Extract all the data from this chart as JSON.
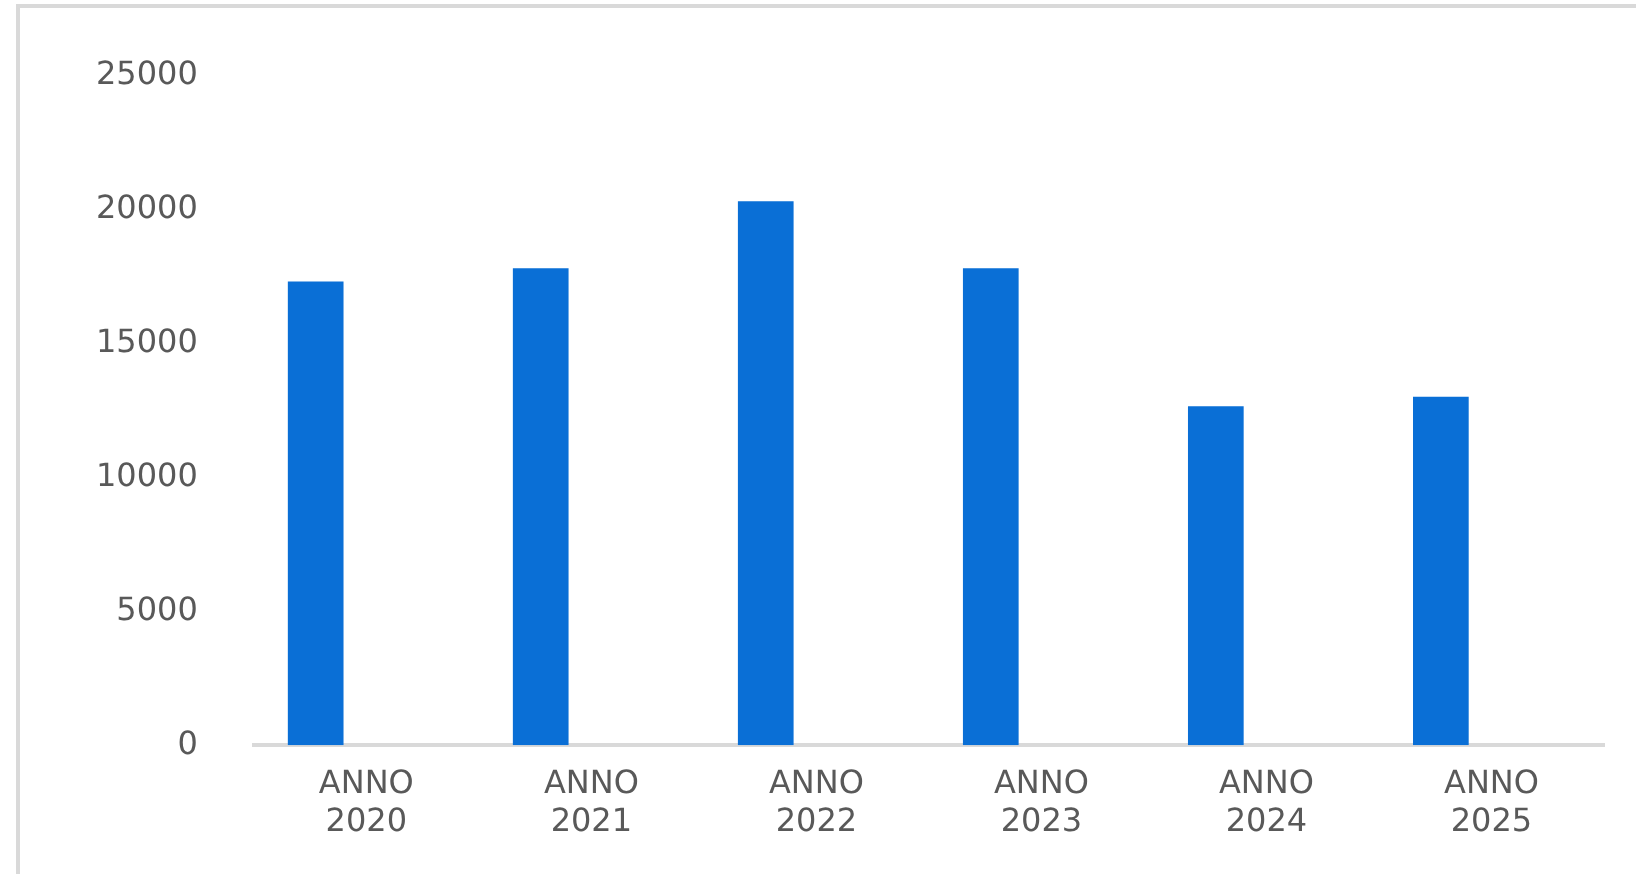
{
  "chart_data": {
    "type": "bar",
    "categories": [
      "ANNO 2020",
      "ANNO 2021",
      "ANNO 2022",
      "ANNO 2023",
      "ANNO 2024",
      "ANNO 2025"
    ],
    "series": [
      {
        "color": "#0a6fd6",
        "values": [
          17300,
          17800,
          20300,
          17800,
          12650,
          13000
        ]
      },
      {
        "color": "#e07020",
        "values": [
          null,
          null,
          null,
          null,
          null,
          null
        ]
      }
    ],
    "ylim": [
      0,
      25000
    ],
    "yticks": [
      0,
      5000,
      10000,
      15000,
      20000,
      25000
    ],
    "grid": false,
    "legend": false
  }
}
